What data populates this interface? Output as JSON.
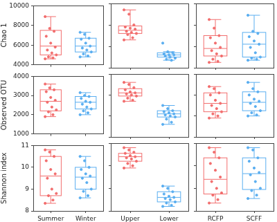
{
  "chart_data": [
    {
      "type": "box",
      "ylabel": "Chao 1",
      "categories": [
        null,
        null
      ],
      "colors": [
        "#f26d6d",
        "#5aaef0"
      ],
      "ylim": [
        4000,
        10000
      ],
      "yticks": [
        4000,
        6000,
        8000,
        10000
      ],
      "tick_labels": "y",
      "boxes": [
        {
          "min": 4600,
          "q1": 5000,
          "median": 5900,
          "q3": 7500,
          "max": 8900,
          "points": [
            8900,
            7700,
            7400,
            6900,
            6200,
            5800,
            5500,
            5200,
            5000,
            4800,
            4700,
            4600
          ]
        },
        {
          "min": 4800,
          "q1": 5300,
          "median": 5900,
          "q3": 6700,
          "max": 7300,
          "points": [
            7300,
            7100,
            6700,
            6600,
            6200,
            5900,
            5700,
            5500,
            5300,
            5100,
            4900,
            4800
          ]
        }
      ]
    },
    {
      "type": "box",
      "categories": [
        null,
        null
      ],
      "colors": [
        "#f26d6d",
        "#5aaef0"
      ],
      "ylim": [
        4000,
        10000
      ],
      "yticks": [
        4000,
        6000,
        8000,
        10000
      ],
      "tick_labels": false,
      "boxes": [
        {
          "min": 6600,
          "q1": 7200,
          "median": 7500,
          "q3": 7900,
          "max": 9400,
          "points": [
            9400,
            9000,
            8000,
            7800,
            7700,
            7600,
            7400,
            7300,
            7200,
            7100,
            6800,
            6600
          ]
        },
        {
          "min": 4700,
          "q1": 5000,
          "median": 5200,
          "q3": 5400,
          "max": 5500,
          "points": [
            6300,
            5500,
            5400,
            5300,
            5200,
            5200,
            5100,
            5000,
            4900,
            4800,
            4700
          ]
        }
      ]
    },
    {
      "type": "box",
      "categories": [
        null,
        null
      ],
      "colors": [
        "#f26d6d",
        "#5aaef0"
      ],
      "ylim": [
        4000,
        10000
      ],
      "yticks": [
        4000,
        6000,
        8000,
        10000
      ],
      "tick_labels": false,
      "boxes": [
        {
          "min": 4500,
          "q1": 5100,
          "median": 5800,
          "q3": 7000,
          "max": 8500,
          "points": [
            8500,
            7700,
            7000,
            6800,
            6300,
            5900,
            5600,
            5300,
            5100,
            4800,
            4600,
            4500
          ]
        },
        {
          "min": 4700,
          "q1": 5000,
          "median": 6200,
          "q3": 7300,
          "max": 8900,
          "points": [
            8900,
            7400,
            7200,
            6900,
            6500,
            6200,
            5900,
            5400,
            5000,
            4900,
            4800,
            4700
          ]
        }
      ]
    },
    {
      "type": "box",
      "ylabel": "Observed OTU",
      "categories": [
        null,
        null
      ],
      "colors": [
        "#f26d6d",
        "#5aaef0"
      ],
      "ylim": [
        1000,
        4000
      ],
      "yticks": [
        1000,
        2000,
        3000,
        4000
      ],
      "tick_labels": "y",
      "boxes": [
        {
          "min": 1900,
          "q1": 2200,
          "median": 2700,
          "q3": 3300,
          "max": 3600,
          "points": [
            3600,
            3400,
            3300,
            3200,
            2900,
            2750,
            2650,
            2400,
            2250,
            2150,
            2000,
            1900
          ]
        },
        {
          "min": 2000,
          "q1": 2300,
          "median": 2650,
          "q3": 2950,
          "max": 3150,
          "points": [
            3150,
            3000,
            2950,
            2850,
            2700,
            2650,
            2550,
            2400,
            2300,
            2200,
            2100,
            2000
          ]
        }
      ]
    },
    {
      "type": "box",
      "categories": [
        null,
        null
      ],
      "colors": [
        "#f26d6d",
        "#5aaef0"
      ],
      "ylim": [
        1000,
        4000
      ],
      "yticks": [
        1000,
        2000,
        3000,
        4000
      ],
      "tick_labels": false,
      "boxes": [
        {
          "min": 2700,
          "q1": 2950,
          "median": 3100,
          "q3": 3300,
          "max": 3600,
          "points": [
            3600,
            3500,
            3350,
            3250,
            3150,
            3100,
            3050,
            3000,
            2950,
            2850,
            2750,
            2700
          ]
        },
        {
          "min": 1600,
          "q1": 1950,
          "median": 2100,
          "q3": 2250,
          "max": 2500,
          "points": [
            2500,
            2350,
            2250,
            2200,
            2150,
            2100,
            2050,
            2000,
            1950,
            1850,
            1700,
            1600
          ]
        }
      ]
    },
    {
      "type": "box",
      "categories": [
        null,
        null
      ],
      "colors": [
        "#f26d6d",
        "#5aaef0"
      ],
      "ylim": [
        1000,
        4000
      ],
      "yticks": [
        1000,
        2000,
        3000,
        4000
      ],
      "tick_labels": false,
      "boxes": [
        {
          "min": 1900,
          "q1": 2200,
          "median": 2600,
          "q3": 3100,
          "max": 3400,
          "points": [
            3400,
            3300,
            3100,
            3000,
            2750,
            2600,
            2500,
            2350,
            2200,
            2100,
            2000,
            1900
          ]
        },
        {
          "min": 2000,
          "q1": 2250,
          "median": 2650,
          "q3": 3150,
          "max": 3600,
          "points": [
            3600,
            3300,
            3150,
            3000,
            2800,
            2700,
            2600,
            2450,
            2250,
            2150,
            2050,
            2000
          ]
        }
      ]
    },
    {
      "type": "box",
      "ylabel": "Shannon index",
      "categories": [
        "Summer",
        "Winter"
      ],
      "colors": [
        "#f26d6d",
        "#5aaef0"
      ],
      "ylim": [
        8,
        11
      ],
      "yticks": [
        8,
        9,
        10,
        11
      ],
      "boxes": [
        {
          "min": 8.35,
          "q1": 8.7,
          "median": 9.6,
          "q3": 10.5,
          "max": 10.8,
          "points": [
            10.8,
            10.7,
            10.5,
            10.3,
            9.9,
            9.7,
            9.5,
            9.0,
            8.8,
            8.7,
            8.5,
            8.35
          ]
        },
        {
          "min": 8.6,
          "q1": 9.0,
          "median": 9.55,
          "q3": 10.0,
          "max": 10.5,
          "points": [
            10.5,
            10.3,
            10.0,
            9.9,
            9.7,
            9.6,
            9.5,
            9.3,
            9.0,
            8.9,
            8.7,
            8.6
          ]
        }
      ]
    },
    {
      "type": "box",
      "categories": [
        "Upper",
        "Lower"
      ],
      "colors": [
        "#f26d6d",
        "#5aaef0"
      ],
      "ylim": [
        8,
        11
      ],
      "yticks": [
        8,
        9,
        10,
        11
      ],
      "tick_labels": "x",
      "boxes": [
        {
          "min": 9.9,
          "q1": 10.2,
          "median": 10.4,
          "q3": 10.55,
          "max": 10.8,
          "points": [
            10.8,
            10.7,
            10.6,
            10.55,
            10.45,
            10.4,
            10.35,
            10.3,
            10.2,
            10.1,
            10.0,
            9.9
          ]
        },
        {
          "min": 8.2,
          "q1": 8.4,
          "median": 8.6,
          "q3": 8.85,
          "max": 9.1,
          "points": [
            9.1,
            9.0,
            8.85,
            8.75,
            8.65,
            8.6,
            8.55,
            8.5,
            8.4,
            8.35,
            8.25,
            8.2
          ]
        }
      ]
    },
    {
      "type": "box",
      "categories": [
        "RCFP",
        "SCFF"
      ],
      "colors": [
        "#f26d6d",
        "#5aaef0"
      ],
      "ylim": [
        8,
        11
      ],
      "yticks": [
        8,
        9,
        10,
        11
      ],
      "tick_labels": "x",
      "boxes": [
        {
          "min": 8.35,
          "q1": 8.75,
          "median": 9.4,
          "q3": 10.35,
          "max": 10.8,
          "points": [
            10.8,
            10.6,
            10.35,
            10.1,
            9.8,
            9.5,
            9.3,
            9.0,
            8.8,
            8.7,
            8.5,
            8.35
          ]
        },
        {
          "min": 8.55,
          "q1": 8.95,
          "median": 9.65,
          "q3": 10.35,
          "max": 10.8,
          "points": [
            10.8,
            10.7,
            10.35,
            10.2,
            9.9,
            9.7,
            9.6,
            9.3,
            9.0,
            8.9,
            8.7,
            8.55
          ]
        }
      ]
    }
  ]
}
